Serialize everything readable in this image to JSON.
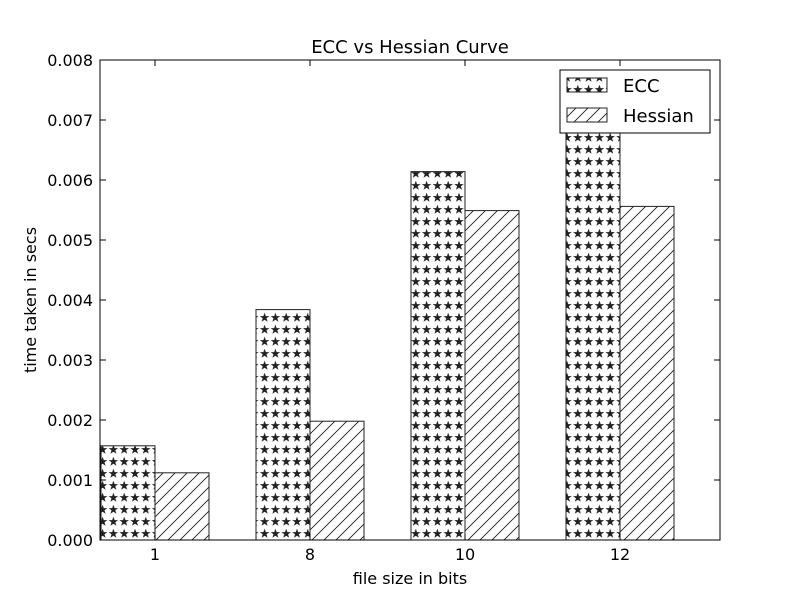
{
  "chart_data": {
    "type": "bar",
    "title": "ECC vs Hessian Curve",
    "xlabel": "file size in bits",
    "ylabel": "time taken in secs",
    "categories": [
      "1",
      "8",
      "10",
      "12"
    ],
    "series": [
      {
        "name": "ECC",
        "values": [
          0.00157,
          0.00384,
          0.00614,
          0.007
        ],
        "pattern": "stars"
      },
      {
        "name": "Hessian",
        "values": [
          0.00112,
          0.00198,
          0.00549,
          0.00556
        ],
        "pattern": "diagonal-hatch"
      }
    ],
    "ylim": [
      0,
      0.008
    ],
    "yticks": [
      "0.000",
      "0.001",
      "0.002",
      "0.003",
      "0.004",
      "0.005",
      "0.006",
      "0.007",
      "0.008"
    ],
    "ytick_values": [
      0,
      0.001,
      0.002,
      0.003,
      0.004,
      0.005,
      0.006,
      0.007,
      0.008
    ],
    "grid": false,
    "legend_position": "top-right",
    "colors": {
      "edge": "#222222",
      "pattern": "#222222",
      "background": "#ffffff"
    }
  }
}
